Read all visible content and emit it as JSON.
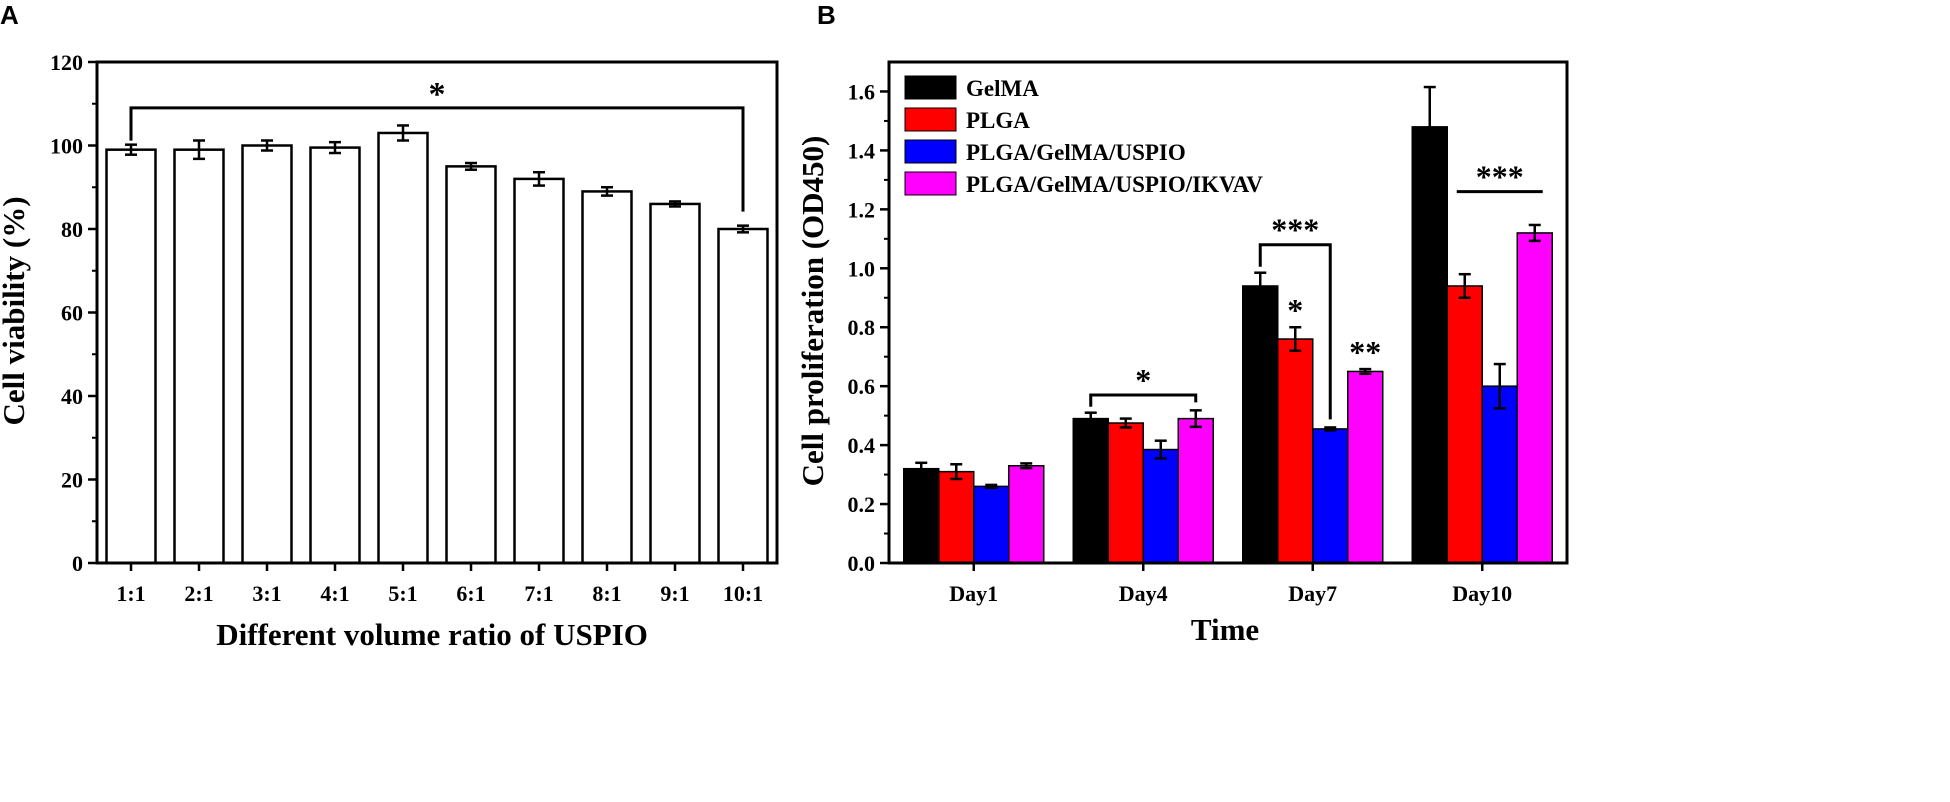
{
  "chart_data": [
    {
      "panel_label": "A",
      "type": "bar",
      "title": "",
      "xlabel": "Different volume ratio of USPIO",
      "ylabel": "Cell viability (%)",
      "ylim": [
        0,
        120
      ],
      "yticks": [
        "0",
        "20",
        "40",
        "60",
        "80",
        "100",
        "120"
      ],
      "categories": [
        "1:1",
        "2:1",
        "3:1",
        "4:1",
        "5:1",
        "6:1",
        "7:1",
        "8:1",
        "9:1",
        "10:1"
      ],
      "values": [
        99,
        99,
        100,
        99.5,
        103,
        95,
        92,
        89,
        86,
        80
      ],
      "errors": [
        1.2,
        2.2,
        1.2,
        1.3,
        1.8,
        0.8,
        1.6,
        1.0,
        0.6,
        0.8
      ],
      "bar_color": "#ffffff",
      "significance": [
        {
          "label": "*",
          "from": "1:1",
          "to": "10:1",
          "y": 109
        }
      ]
    },
    {
      "panel_label": "B",
      "type": "bar",
      "title": "",
      "xlabel": "Time",
      "ylabel": "Cell proliferation (OD450)",
      "ylim": [
        0,
        1.7
      ],
      "yticks": [
        "0.0",
        "0.2",
        "0.4",
        "0.6",
        "0.8",
        "1.0",
        "1.2",
        "1.4",
        "1.6"
      ],
      "categories": [
        "Day1",
        "Day4",
        "Day7",
        "Day10"
      ],
      "legend_position": "top-left",
      "series": [
        {
          "name": "GelMA",
          "color": "#000000",
          "values": [
            0.32,
            0.49,
            0.94,
            1.48
          ],
          "errors": [
            0.02,
            0.02,
            0.045,
            0.135
          ]
        },
        {
          "name": "PLGA",
          "color": "#ff0000",
          "values": [
            0.31,
            0.475,
            0.76,
            0.94
          ],
          "errors": [
            0.025,
            0.015,
            0.04,
            0.04
          ]
        },
        {
          "name": "PLGA/GelMA/USPIO",
          "color": "#0000ff",
          "values": [
            0.26,
            0.385,
            0.455,
            0.6
          ],
          "errors": [
            0.005,
            0.03,
            0.005,
            0.075
          ]
        },
        {
          "name": "PLGA/GelMA/USPIO/IKVAV",
          "color": "#ff00ff",
          "values": [
            0.33,
            0.49,
            0.65,
            1.12
          ],
          "errors": [
            0.008,
            0.028,
            0.008,
            0.027
          ]
        }
      ],
      "significance": [
        {
          "label": "*",
          "kind": "bracket",
          "category": "Day4",
          "from_series": 0,
          "to_series": 3,
          "y": 0.57
        },
        {
          "label": "***",
          "kind": "bracket",
          "category": "Day7",
          "from_series": 0,
          "to_series": 2,
          "y": 1.08
        },
        {
          "label": "*",
          "kind": "above",
          "category": "Day7",
          "series": 1
        },
        {
          "label": "**",
          "kind": "above",
          "category": "Day7",
          "series": 3
        },
        {
          "label": "***",
          "kind": "line",
          "category": "Day10",
          "from_series": 1,
          "to_series": 3,
          "y": 1.26
        }
      ]
    }
  ]
}
